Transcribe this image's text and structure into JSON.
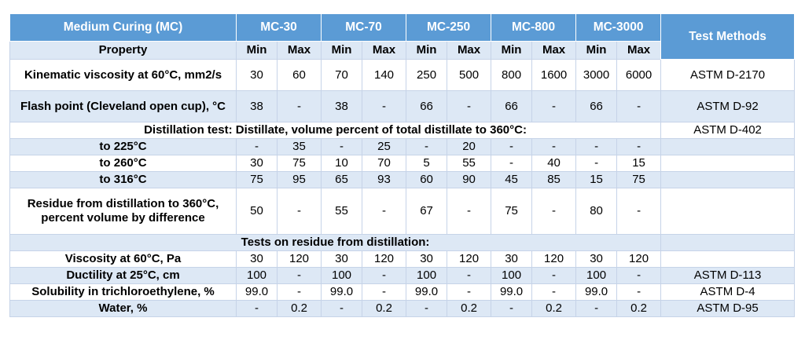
{
  "header": {
    "title": "Medium Curing (MC)",
    "grades": [
      "MC-30",
      "MC-70",
      "MC-250",
      "MC-800",
      "MC-3000"
    ],
    "test_methods": "Test Methods"
  },
  "property_row": {
    "label": "Property",
    "min": "Min",
    "max": "Max"
  },
  "rows": {
    "kinematic": {
      "label": "Kinematic viscosity at 60°C, mm2/s",
      "values": [
        "30",
        "60",
        "70",
        "140",
        "250",
        "500",
        "800",
        "1600",
        "3000",
        "6000"
      ],
      "method": "ASTM D-2170"
    },
    "flash": {
      "label": "Flash point (Cleveland open cup), °C",
      "values": [
        "38",
        "-",
        "38",
        "-",
        "66",
        "-",
        "66",
        "-",
        "66",
        "-"
      ],
      "method": "ASTM D-92"
    },
    "distillation": {
      "text": "Distillation test:  Distillate, volume percent of total distillate to 360°C:",
      "method": "ASTM D-402"
    },
    "t225": {
      "label": "to 225°C",
      "values": [
        "-",
        "35",
        "-",
        "25",
        "-",
        "20",
        "-",
        "-",
        "-",
        "-"
      ],
      "method": ""
    },
    "t260": {
      "label": "to 260°C",
      "values": [
        "30",
        "75",
        "10",
        "70",
        "5",
        "55",
        "-",
        "40",
        "-",
        "15"
      ],
      "method": ""
    },
    "t316": {
      "label": "to 316°C",
      "values": [
        "75",
        "95",
        "65",
        "93",
        "60",
        "90",
        "45",
        "85",
        "15",
        "75"
      ],
      "method": ""
    },
    "residue": {
      "label": "Residue from distillation to 360°C, percent volume by difference",
      "values": [
        "50",
        "-",
        "55",
        "-",
        "67",
        "-",
        "75",
        "-",
        "80",
        "-"
      ],
      "method": ""
    },
    "tests_residue": {
      "text": "Tests on residue from distillation:",
      "method": ""
    },
    "viscosity": {
      "label": "Viscosity at 60°C, Pa",
      "values": [
        "30",
        "120",
        "30",
        "120",
        "30",
        "120",
        "30",
        "120",
        "30",
        "120"
      ],
      "method": ""
    },
    "ductility": {
      "label": "Ductility at 25°C, cm",
      "values": [
        "100",
        "-",
        "100",
        "-",
        "100",
        "-",
        "100",
        "-",
        "100",
        "-"
      ],
      "method": "ASTM D-113"
    },
    "solubility": {
      "label": "Solubility in trichloroethylene, %",
      "values": [
        "99.0",
        "-",
        "99.0",
        "-",
        "99.0",
        "-",
        "99.0",
        "-",
        "99.0",
        "-"
      ],
      "method": "ASTM D-4"
    },
    "water": {
      "label": "Water, %",
      "values": [
        "-",
        "0.2",
        "-",
        "0.2",
        "-",
        "0.2",
        "-",
        "0.2",
        "-",
        "0.2"
      ],
      "method": "ASTM D-95"
    }
  },
  "colors": {
    "header_bg": "#5b9bd5",
    "header_text": "#ffffff",
    "band_bg": "#dde8f5",
    "border": "#c6d3e8"
  }
}
